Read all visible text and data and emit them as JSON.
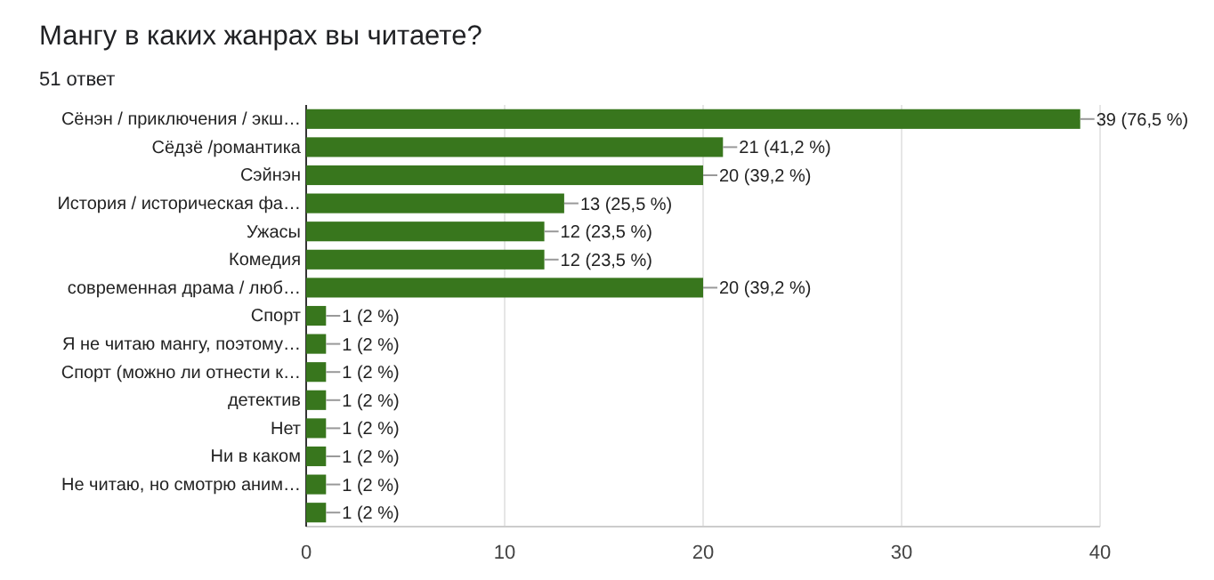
{
  "chart_data": {
    "type": "bar",
    "orientation": "horizontal",
    "title": "Мангу в каких жанрах вы читаете?",
    "subtitle": "51 ответ",
    "categories": [
      "Сёнэн / приключения / экш…",
      "Сёдзё /романтика",
      "Сэйнэн",
      "История / историческая фа…",
      "Ужасы",
      "Комедия",
      "современная драма / люб…",
      "Спорт",
      "Я не читаю мангу, поэтому…",
      "Спорт (можно ли отнести к…",
      "детектив",
      "Нет",
      "Ни в каком",
      "Не читаю, но смотрю аним…",
      null
    ],
    "values": [
      39,
      21,
      20,
      13,
      12,
      12,
      20,
      1,
      1,
      1,
      1,
      1,
      1,
      1,
      1
    ],
    "value_labels": [
      "39 (76,5 %)",
      "21 (41,2 %)",
      "20 (39,2 %)",
      "13 (25,5 %)",
      "12 (23,5 %)",
      "12 (23,5 %)",
      "20 (39,2 %)",
      "1 (2 %)",
      "1 (2 %)",
      "1 (2 %)",
      "1 (2 %)",
      "1 (2 %)",
      "1 (2 %)",
      "1 (2 %)",
      "1 (2 %)"
    ],
    "color": "#38761d",
    "xlim": [
      0,
      40
    ],
    "xticks": [
      0,
      10,
      20,
      30,
      40
    ],
    "grid": "x"
  }
}
